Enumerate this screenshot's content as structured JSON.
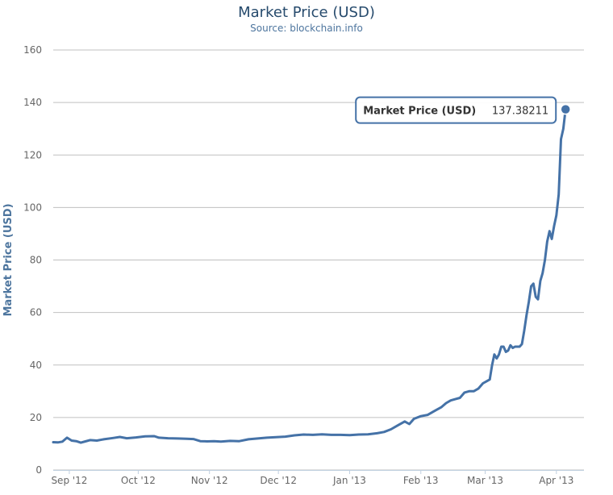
{
  "chart_data": {
    "type": "line",
    "title": "Market Price (USD)",
    "subtitle": "Source: blockchain.info",
    "xlabel": "",
    "ylabel": "Market Price (USD)",
    "ylim": [
      0,
      160
    ],
    "yticks": [
      0,
      20,
      40,
      60,
      80,
      100,
      120,
      140,
      160
    ],
    "xlim": [
      "2012-08-25",
      "2013-04-13"
    ],
    "xticks": [
      {
        "label": "Sep '12",
        "date": "2012-09-01"
      },
      {
        "label": "Oct '12",
        "date": "2012-10-01"
      },
      {
        "label": "Nov '12",
        "date": "2012-11-01"
      },
      {
        "label": "Dec '12",
        "date": "2012-12-01"
      },
      {
        "label": "Jan '13",
        "date": "2013-01-01"
      },
      {
        "label": "Feb '13",
        "date": "2013-02-01"
      },
      {
        "label": "Mar '13",
        "date": "2013-03-01"
      },
      {
        "label": "Apr '13",
        "date": "2013-04-01"
      }
    ],
    "grid": true,
    "color": "#4572a7",
    "series": [
      {
        "name": "Market Price (USD)",
        "points": [
          [
            "2012-08-25",
            10.6
          ],
          [
            "2012-08-27",
            10.5
          ],
          [
            "2012-08-29",
            10.8
          ],
          [
            "2012-08-31",
            12.3
          ],
          [
            "2012-09-02",
            11.2
          ],
          [
            "2012-09-04",
            11.0
          ],
          [
            "2012-09-06",
            10.4
          ],
          [
            "2012-09-08",
            10.9
          ],
          [
            "2012-09-10",
            11.4
          ],
          [
            "2012-09-13",
            11.2
          ],
          [
            "2012-09-16",
            11.7
          ],
          [
            "2012-09-20",
            12.2
          ],
          [
            "2012-09-23",
            12.6
          ],
          [
            "2012-09-26",
            12.1
          ],
          [
            "2012-09-30",
            12.4
          ],
          [
            "2012-10-04",
            12.8
          ],
          [
            "2012-10-08",
            12.9
          ],
          [
            "2012-10-10",
            12.3
          ],
          [
            "2012-10-14",
            12.1
          ],
          [
            "2012-10-18",
            12.0
          ],
          [
            "2012-10-22",
            11.9
          ],
          [
            "2012-10-25",
            11.8
          ],
          [
            "2012-10-28",
            11.0
          ],
          [
            "2012-10-31",
            10.9
          ],
          [
            "2012-11-03",
            11.0
          ],
          [
            "2012-11-06",
            10.8
          ],
          [
            "2012-11-10",
            11.1
          ],
          [
            "2012-11-14",
            11.0
          ],
          [
            "2012-11-18",
            11.7
          ],
          [
            "2012-11-22",
            12.0
          ],
          [
            "2012-11-26",
            12.3
          ],
          [
            "2012-11-30",
            12.5
          ],
          [
            "2012-12-04",
            12.7
          ],
          [
            "2012-12-08",
            13.2
          ],
          [
            "2012-12-12",
            13.5
          ],
          [
            "2012-12-16",
            13.4
          ],
          [
            "2012-12-20",
            13.6
          ],
          [
            "2012-12-24",
            13.4
          ],
          [
            "2012-12-28",
            13.4
          ],
          [
            "2013-01-01",
            13.3
          ],
          [
            "2013-01-05",
            13.5
          ],
          [
            "2013-01-09",
            13.6
          ],
          [
            "2013-01-13",
            14.0
          ],
          [
            "2013-01-16",
            14.5
          ],
          [
            "2013-01-19",
            15.5
          ],
          [
            "2013-01-22",
            17.0
          ],
          [
            "2013-01-25",
            18.5
          ],
          [
            "2013-01-27",
            17.5
          ],
          [
            "2013-01-29",
            19.5
          ],
          [
            "2013-02-01",
            20.5
          ],
          [
            "2013-02-04",
            21.0
          ],
          [
            "2013-02-07",
            22.5
          ],
          [
            "2013-02-10",
            24.0
          ],
          [
            "2013-02-12",
            25.5
          ],
          [
            "2013-02-14",
            26.5
          ],
          [
            "2013-02-16",
            27.0
          ],
          [
            "2013-02-18",
            27.5
          ],
          [
            "2013-02-20",
            29.5
          ],
          [
            "2013-02-22",
            30.0
          ],
          [
            "2013-02-24",
            30.0
          ],
          [
            "2013-02-26",
            31.0
          ],
          [
            "2013-02-28",
            33.0
          ],
          [
            "2013-03-02",
            34.0
          ],
          [
            "2013-03-03",
            34.5
          ],
          [
            "2013-03-04",
            40.0
          ],
          [
            "2013-03-05",
            44.0
          ],
          [
            "2013-03-06",
            42.5
          ],
          [
            "2013-03-07",
            44.0
          ],
          [
            "2013-03-08",
            47.0
          ],
          [
            "2013-03-09",
            47.0
          ],
          [
            "2013-03-10",
            45.0
          ],
          [
            "2013-03-11",
            45.5
          ],
          [
            "2013-03-12",
            47.5
          ],
          [
            "2013-03-13",
            46.5
          ],
          [
            "2013-03-14",
            47.0
          ],
          [
            "2013-03-16",
            47.0
          ],
          [
            "2013-03-17",
            48.0
          ],
          [
            "2013-03-18",
            53.0
          ],
          [
            "2013-03-19",
            59.0
          ],
          [
            "2013-03-20",
            64.0
          ],
          [
            "2013-03-21",
            70.0
          ],
          [
            "2013-03-22",
            71.0
          ],
          [
            "2013-03-23",
            66.0
          ],
          [
            "2013-03-24",
            65.0
          ],
          [
            "2013-03-25",
            72.0
          ],
          [
            "2013-03-26",
            75.0
          ],
          [
            "2013-03-27",
            80.0
          ],
          [
            "2013-03-28",
            87.0
          ],
          [
            "2013-03-29",
            91.0
          ],
          [
            "2013-03-30",
            88.0
          ],
          [
            "2013-03-31",
            93.0
          ],
          [
            "2013-04-01",
            97.0
          ],
          [
            "2013-04-02",
            105.0
          ],
          [
            "2013-04-03",
            126.0
          ],
          [
            "2013-04-04",
            130.0
          ],
          [
            "2013-04-05",
            137.38211
          ]
        ]
      }
    ],
    "tooltip": {
      "label": "Market Price (USD)",
      "value": "137.38211"
    }
  }
}
